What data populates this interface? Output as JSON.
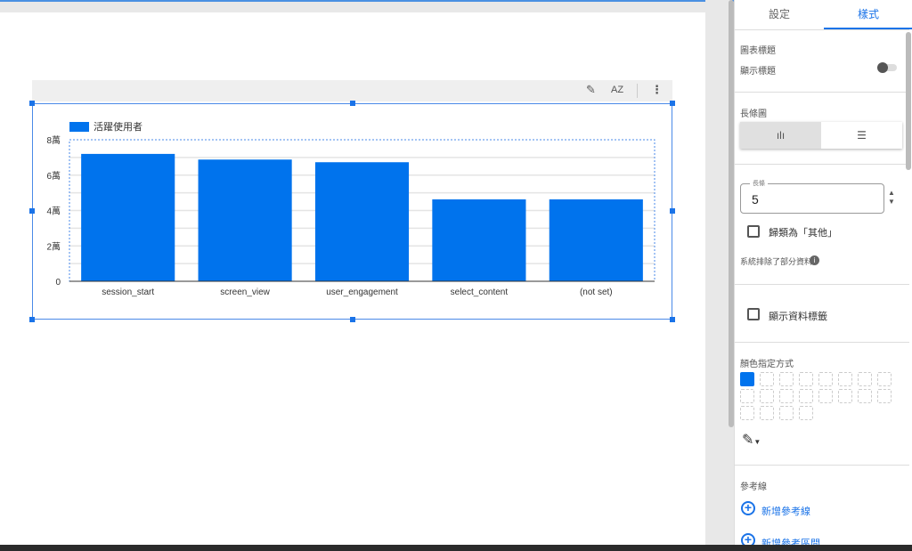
{
  "toolbar": {
    "edit_icon": "pencil-icon",
    "sort_icon": "sort-az-icon",
    "sort_label": "AZ",
    "more_icon": "more-vert-icon"
  },
  "chart_data": {
    "type": "bar",
    "legend": "活躍使用者",
    "legend_position": "top-left",
    "categories": [
      "session_start",
      "screen_view",
      "user_engagement",
      "select_content",
      "(not set)"
    ],
    "series": [
      {
        "name": "活躍使用者",
        "values": [
          72000,
          68800,
          67300,
          46300,
          46300
        ],
        "color": "#0073ed"
      }
    ],
    "ylim": [
      0,
      80000
    ],
    "yticks": [
      0,
      20000,
      40000,
      60000,
      80000
    ],
    "ytick_labels": [
      "0",
      "2萬",
      "4萬",
      "6萬",
      "8萬"
    ],
    "grid": true
  },
  "panel": {
    "tabs": [
      {
        "label": "設定"
      },
      {
        "label": "樣式"
      }
    ],
    "active_tab": "樣式",
    "chart_title_section": "圖表標題",
    "show_title_label": "顯示標題",
    "show_title_on": false,
    "bar_chart_section": "長條圖",
    "orientation_selected": "vertical",
    "bars_field_label": "長條",
    "bars_value": "5",
    "group_others_label": "歸類為「其他」",
    "group_others_checked": false,
    "excluded_note": "系統排除了部分資料",
    "show_data_labels": "顯示資料標籤",
    "show_data_labels_checked": false,
    "color_section": "顏色指定方式",
    "selected_color": "#0073ed",
    "reference_section": "參考線",
    "add_reference_line": "新增參考線",
    "add_reference_band": "新增參考區間"
  }
}
